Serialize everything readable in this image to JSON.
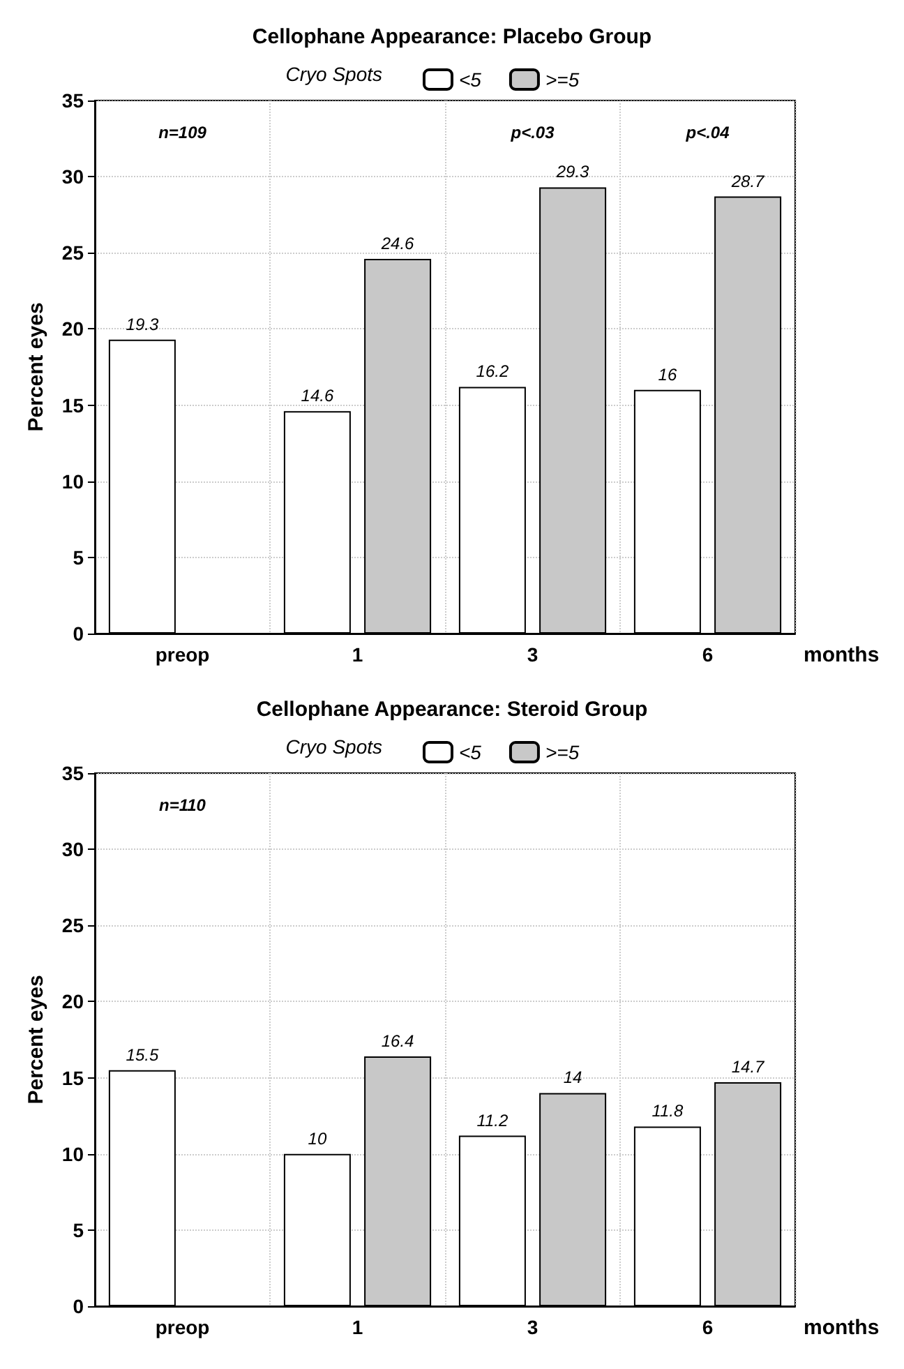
{
  "chart_data": [
    {
      "type": "bar",
      "title": "Cellophane Appearance: Placebo Group",
      "legend_title": "Cryo Spots",
      "xlabel": "months",
      "ylabel": "Percent eyes",
      "categories": [
        "preop",
        "1",
        "3",
        "6"
      ],
      "series": [
        {
          "name": "<5",
          "color": "#ffffff",
          "values": [
            19.3,
            14.6,
            16.2,
            16
          ]
        },
        {
          "name": ">=5",
          "color": "#c8c8c8",
          "values": [
            null,
            24.6,
            29.3,
            28.7
          ]
        }
      ],
      "ylim": [
        0,
        35
      ],
      "yticks": [
        0,
        5,
        10,
        15,
        20,
        25,
        30,
        35
      ],
      "grid": true,
      "legend": "top",
      "data_labels": true,
      "annotations": [
        "n=109",
        "p<.03",
        "p<.04"
      ]
    },
    {
      "type": "bar",
      "title": "Cellophane Appearance: Steroid Group",
      "legend_title": "Cryo Spots",
      "xlabel": "months",
      "ylabel": "Percent eyes",
      "categories": [
        "preop",
        "1",
        "3",
        "6"
      ],
      "series": [
        {
          "name": "<5",
          "color": "#ffffff",
          "values": [
            15.5,
            10,
            11.2,
            11.8
          ]
        },
        {
          "name": ">=5",
          "color": "#c8c8c8",
          "values": [
            null,
            16.4,
            14,
            14.7
          ]
        }
      ],
      "ylim": [
        0,
        35
      ],
      "yticks": [
        0,
        5,
        10,
        15,
        20,
        25,
        30,
        35
      ],
      "grid": true,
      "legend": "top",
      "data_labels": true,
      "annotations": [
        "n=110"
      ]
    }
  ]
}
